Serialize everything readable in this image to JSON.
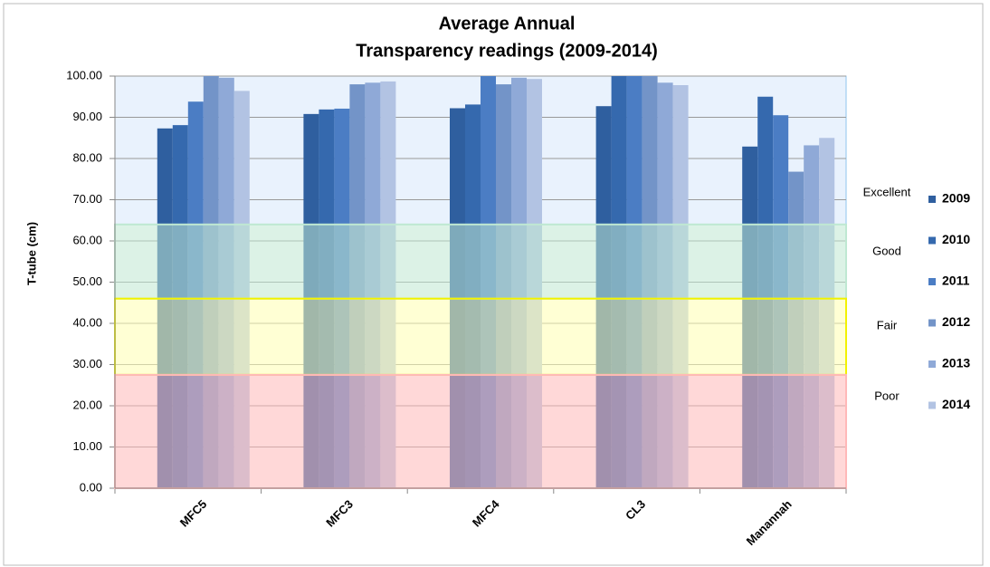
{
  "chart_data": {
    "type": "bar",
    "title": [
      "Average Annual",
      "Transparency readings (2009-2014)"
    ],
    "y_label": "T-tube (cm)",
    "categories": [
      "MFC5",
      "MFC3",
      "MFC4",
      "CL3",
      "Manannah"
    ],
    "series": [
      {
        "name": "2009",
        "color": "#2f5f9f",
        "values": [
          87.3,
          90.8,
          92.2,
          92.7,
          82.9
        ]
      },
      {
        "name": "2010",
        "color": "#3569ae",
        "values": [
          88.1,
          91.9,
          93.1,
          100,
          95.0
        ]
      },
      {
        "name": "2011",
        "color": "#4b7dc4",
        "values": [
          93.8,
          92.1,
          100,
          100,
          90.5
        ]
      },
      {
        "name": "2012",
        "color": "#7394c8",
        "values": [
          100,
          98.0,
          98.0,
          100,
          76.8
        ]
      },
      {
        "name": "2013",
        "color": "#8fa9d7",
        "values": [
          99.6,
          98.4,
          99.6,
          98.4,
          83.2
        ]
      },
      {
        "name": "2014",
        "color": "#b2c3e3",
        "values": [
          96.4,
          98.7,
          99.3,
          97.8,
          85.0
        ]
      }
    ],
    "bands": [
      {
        "label": "Excellent",
        "from": 64,
        "to": 100,
        "color": "#dbe9fb",
        "edge": "#8ec4ee"
      },
      {
        "label": "Good",
        "from": 46,
        "to": 64,
        "color": "#bfe8d2",
        "edge": "#bfe8d2"
      },
      {
        "label": "Fair",
        "from": 27.5,
        "to": 46,
        "color": "#ffffb0",
        "edge": "#f2f200"
      },
      {
        "label": "Poor",
        "from": 0,
        "to": 27.5,
        "color": "#ffb8b8",
        "edge": "#ffb8b8"
      }
    ],
    "ylim": [
      0,
      100
    ],
    "yticks": [
      {
        "value": 0,
        "label": "0.00"
      },
      {
        "value": 10,
        "label": "10.00"
      },
      {
        "value": 20,
        "label": "20.00"
      },
      {
        "value": 30,
        "label": "30.00"
      },
      {
        "value": 40,
        "label": "40.00"
      },
      {
        "value": 50,
        "label": "50.00"
      },
      {
        "value": 60,
        "label": "60.00"
      },
      {
        "value": 70,
        "label": "70.00"
      },
      {
        "value": 80,
        "label": "80.00"
      },
      {
        "value": 90,
        "label": "90.00"
      },
      {
        "value": 100,
        "label": "100.00"
      }
    ],
    "grid": true
  }
}
